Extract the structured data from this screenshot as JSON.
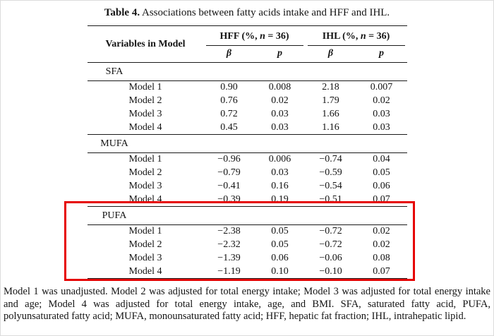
{
  "caption": {
    "label": "Table 4.",
    "text": " Associations between fatty acids intake and HFF and IHL."
  },
  "table": {
    "variables_header": "Variables in Model",
    "groups": [
      {
        "pre": "HFF (%, ",
        "n": "n",
        "post": " = 36)"
      },
      {
        "pre": "IHL (%, ",
        "n": "n",
        "post": " = 36)"
      }
    ],
    "subheaders": {
      "beta": "β",
      "p": "p"
    },
    "sections": [
      {
        "name": "SFA",
        "rows": [
          {
            "model": "Model 1",
            "values": [
              "0.90",
              "0.008",
              "2.18",
              "0.007"
            ]
          },
          {
            "model": "Model 2",
            "values": [
              "0.76",
              "0.02",
              "1.79",
              "0.02"
            ]
          },
          {
            "model": "Model 3",
            "values": [
              "0.72",
              "0.03",
              "1.66",
              "0.03"
            ]
          },
          {
            "model": "Model 4",
            "values": [
              "0.45",
              "0.03",
              "1.16",
              "0.03"
            ]
          }
        ]
      },
      {
        "name": "MUFA",
        "rows": [
          {
            "model": "Model 1",
            "values": [
              "−0.96",
              "0.006",
              "−0.74",
              "0.04"
            ]
          },
          {
            "model": "Model 2",
            "values": [
              "−0.79",
              "0.03",
              "−0.59",
              "0.05"
            ]
          },
          {
            "model": "Model 3",
            "values": [
              "−0.41",
              "0.16",
              "−0.54",
              "0.06"
            ]
          },
          {
            "model": "Model 4",
            "values": [
              "−0.39",
              "0.19",
              "−0.51",
              "0.07"
            ]
          }
        ]
      },
      {
        "name": "PUFA",
        "rows": [
          {
            "model": "Model 1",
            "values": [
              "−2.38",
              "0.05",
              "−0.72",
              "0.02"
            ]
          },
          {
            "model": "Model 2",
            "values": [
              "−2.32",
              "0.05",
              "−0.72",
              "0.02"
            ]
          },
          {
            "model": "Model 3",
            "values": [
              "−1.39",
              "0.06",
              "−0.06",
              "0.08"
            ]
          },
          {
            "model": "Model 4",
            "values": [
              "−1.19",
              "0.10",
              "−0.10",
              "0.07"
            ]
          }
        ]
      }
    ]
  },
  "highlight": {
    "color": "#e60000"
  },
  "footnote": {
    "text": "Model 1 was unadjusted. Model 2 was adjusted for total energy intake; Model 3 was adjusted for total energy intake and age; Model 4 was adjusted for total energy intake, age, and BMI. SFA, saturated fatty acid, PUFA, polyunsaturated fatty acid; MUFA, monounsaturated fatty acid; HFF, hepatic fat fraction; IHL, intrahepatic lipid."
  }
}
